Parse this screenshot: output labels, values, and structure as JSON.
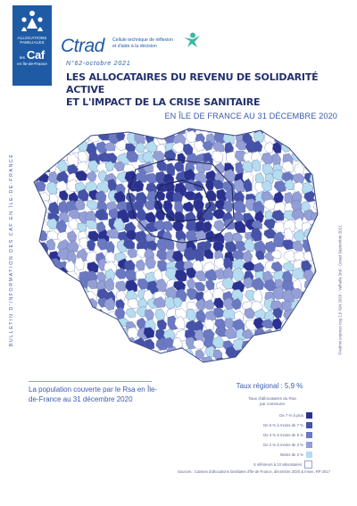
{
  "header": {
    "logo_lines": [
      "ALLOCATIONS",
      "FAMILIALES"
    ],
    "caf_label": "Caf",
    "caf_prefix": "les",
    "caf_region": "en Île-de-France",
    "ctrad_name": "Ctrad",
    "ctrad_tagline_1": "Cellule technique de réflexion",
    "ctrad_tagline_2": "et d'aide à la décision",
    "issue": "N°62-octobre 2021",
    "title_line_1": "LES ALLOCATAIRES DU REVENU DE SOLIDARITÉ ACTIVE",
    "title_line_2": "ET L'IMPACT DE LA CRISE SANITAIRE",
    "subtitle": "EN ÎLE DE FRANCE AU 31 DÉCEMBRE 2020"
  },
  "side_band": "BULLETIN D'INFORMATION DES CAF EN ÎLE-DE-FRANCE",
  "credit": "©Admin express cog 2.0 IGN 2020 - Valhalla 2nd - Cnrad Septembre 2021",
  "coverage_text": "La population couverte par le Rsa en Île-de-France au 31 décembre 2020",
  "legend": {
    "rate": "Taux régional : 5,9 %",
    "title_1": "Taux d'allocataires du Rsa",
    "title_2": "par commune",
    "items": [
      {
        "label": "De 7 % à plus",
        "color": "#2b318f"
      },
      {
        "label": "De 5 % à moins de 7 %",
        "color": "#4552a8"
      },
      {
        "label": "De 3 % à moins de 5 %",
        "color": "#6b78c2"
      },
      {
        "label": "De 2 % à moins de 3 %",
        "color": "#949fd6"
      },
      {
        "label": "Moins de 2 %",
        "color": "#b5dcef"
      },
      {
        "label": "5 inférieurs à 10 allocataires",
        "color": "#ffffff"
      }
    ]
  },
  "source": "Sources : Caisses d'allocations familiales d'Île-de-France, décembre 2020 & Insee, RP 2017"
}
